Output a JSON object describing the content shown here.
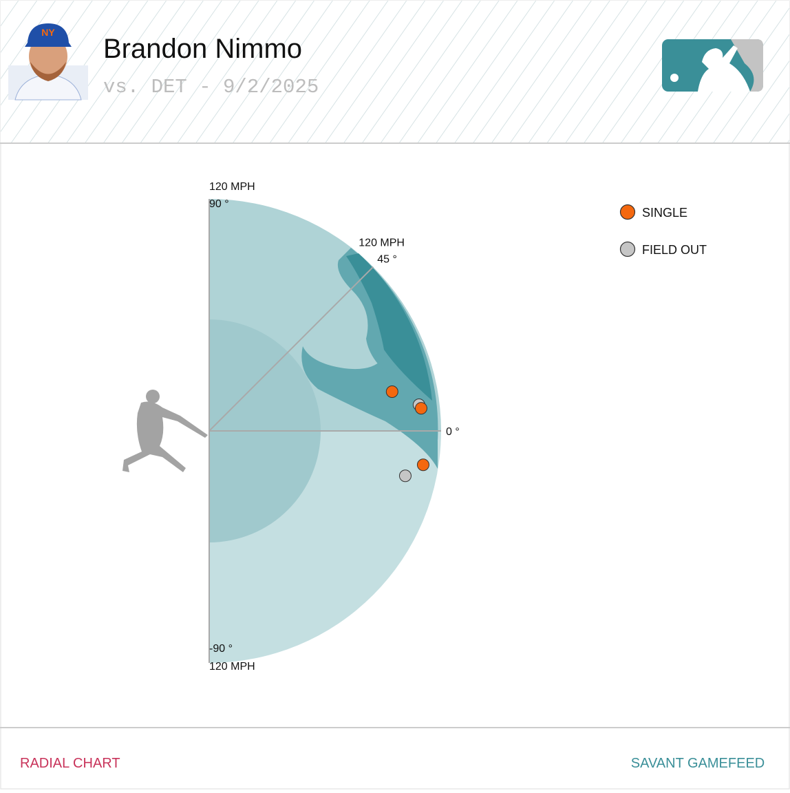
{
  "header": {
    "player": "Brandon Nimmo",
    "subtitle": "vs. DET - 9/2/2025"
  },
  "chart_data": {
    "type": "radial",
    "rlim": [
      0,
      120
    ],
    "thetalim": [
      -90,
      90
    ],
    "rticks": [
      {
        "value": 120,
        "label": "120 MPH"
      }
    ],
    "thetaticks": [
      {
        "value": 90,
        "label": "90 °"
      },
      {
        "value": 45,
        "label": "45 °"
      },
      {
        "value": 0,
        "label": "0 °"
      },
      {
        "value": -90,
        "label": "-90 °"
      }
    ],
    "legend": "top-right",
    "series": [
      {
        "name": "SINGLE",
        "color": "#f4680f",
        "values": [
          96.8,
          110.3,
          112.1
        ],
        "angles": [
          12.1,
          6.1,
          -9.0
        ]
      },
      {
        "name": "FIELD OUT",
        "color": "#c6c6c6",
        "values": [
          109.4,
          104.1
        ],
        "angles": [
          7.1,
          -12.9
        ]
      }
    ]
  },
  "footer": {
    "left": "RADIAL CHART",
    "right": "SAVANT GAMEFEED"
  }
}
